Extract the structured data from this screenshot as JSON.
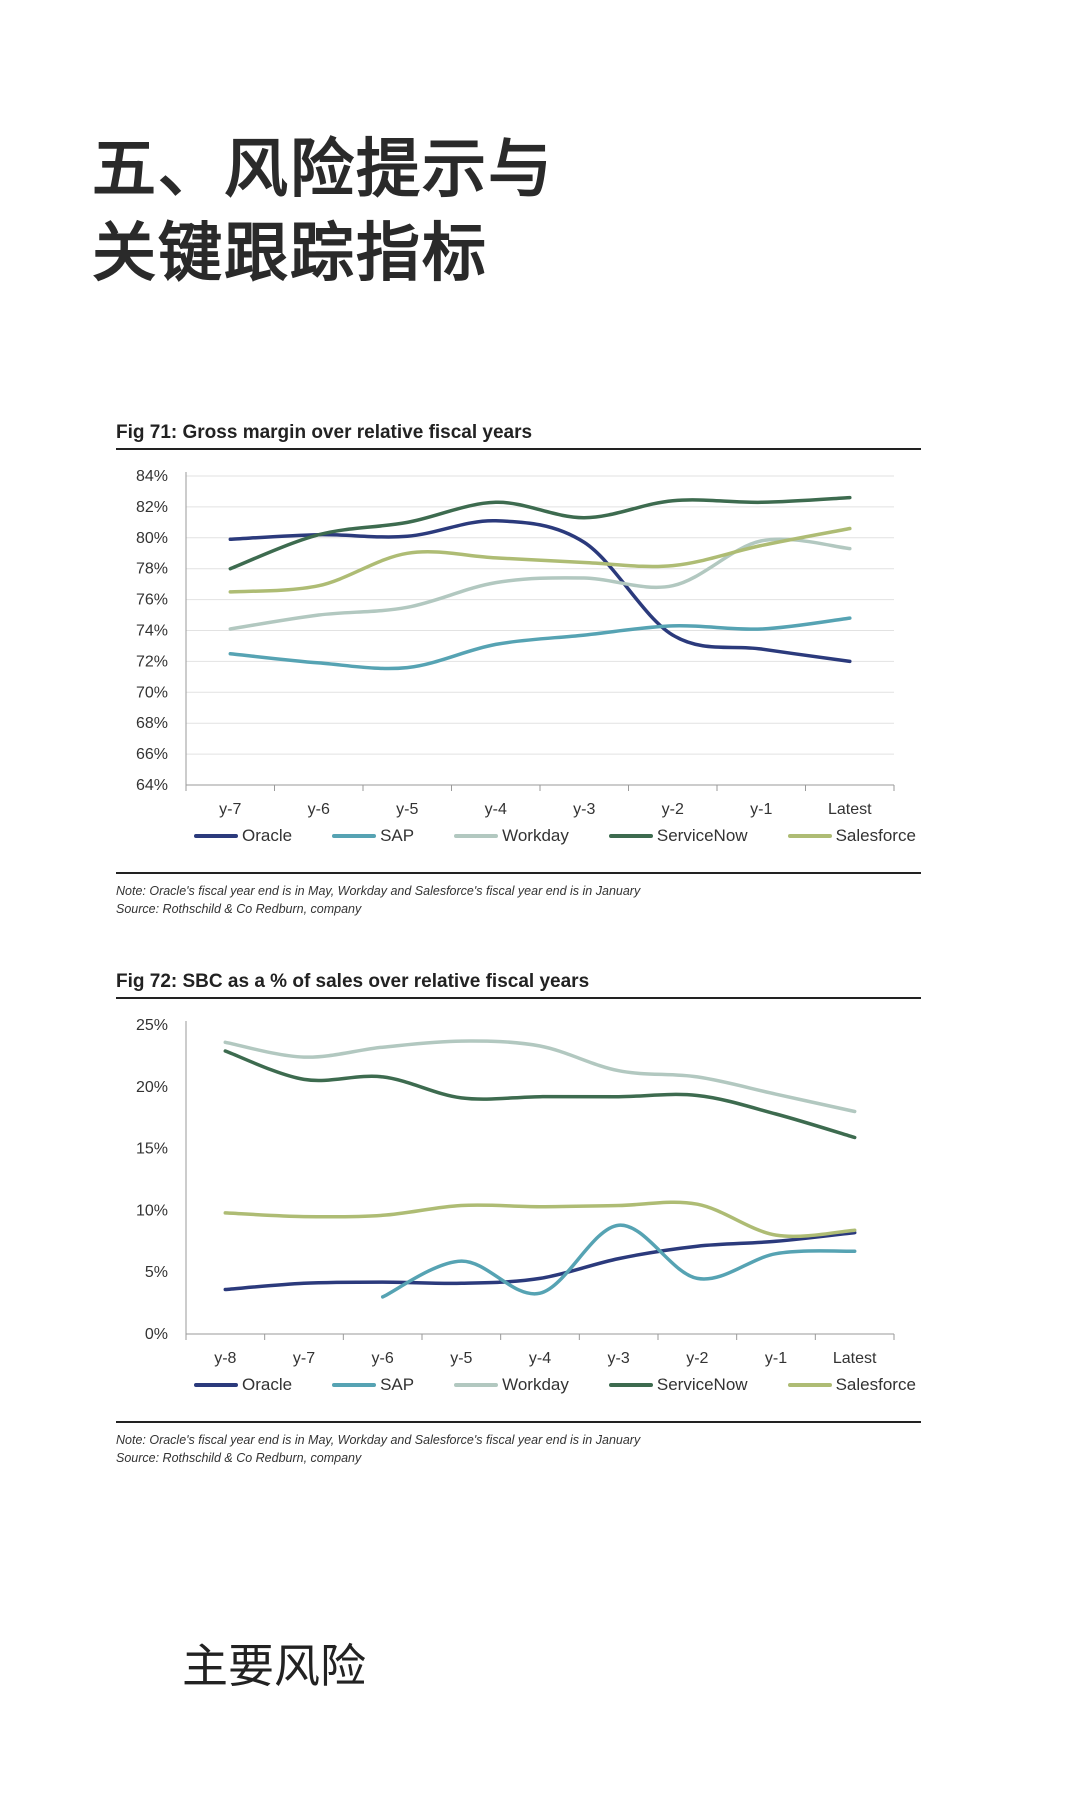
{
  "page": {
    "title_line1": "五、风险提示与",
    "title_line2": "关键跟踪指标",
    "section_heading": "主要风险"
  },
  "colors": {
    "Oracle": "#2b3a7c",
    "SAP": "#56a3b3",
    "Workday": "#b2c8c0",
    "ServiceNow": "#3d6b4f",
    "Salesforce": "#aebc74"
  },
  "chart_data": [
    {
      "type": "line",
      "title": "Fig 71: Gross margin over relative fiscal years",
      "xlabel": "",
      "ylabel": "",
      "categories": [
        "y-7",
        "y-6",
        "y-5",
        "y-4",
        "y-3",
        "y-2",
        "y-1",
        "Latest"
      ],
      "y_ticks": [
        64,
        66,
        68,
        70,
        72,
        74,
        76,
        78,
        80,
        82,
        84
      ],
      "y_tick_labels": [
        "64%",
        "66%",
        "68%",
        "70%",
        "72%",
        "74%",
        "76%",
        "78%",
        "80%",
        "82%",
        "84%"
      ],
      "ylim": [
        64,
        84
      ],
      "grid": true,
      "legend_position": "bottom",
      "series": [
        {
          "name": "Oracle",
          "values": [
            79.9,
            80.2,
            80.1,
            81.1,
            79.7,
            73.7,
            72.8,
            72.0
          ]
        },
        {
          "name": "SAP",
          "values": [
            72.5,
            71.9,
            71.6,
            73.1,
            73.7,
            74.3,
            74.1,
            74.8
          ]
        },
        {
          "name": "Workday",
          "values": [
            74.1,
            75.0,
            75.5,
            77.1,
            77.4,
            76.9,
            79.8,
            79.3
          ]
        },
        {
          "name": "ServiceNow",
          "values": [
            78.0,
            80.2,
            81.0,
            82.3,
            81.3,
            82.4,
            82.3,
            82.6
          ]
        },
        {
          "name": "Salesforce",
          "values": [
            76.5,
            76.9,
            79.0,
            78.7,
            78.4,
            78.2,
            79.5,
            80.6
          ]
        }
      ],
      "note_line1": "Note: Oracle's fiscal year end is in May, Workday and Salesforce's fiscal year end is in January",
      "note_line2": "Source: Rothschild & Co Redburn, company"
    },
    {
      "type": "line",
      "title": "Fig 72: SBC as a % of sales over relative fiscal years",
      "xlabel": "",
      "ylabel": "",
      "categories": [
        "y-8",
        "y-7",
        "y-6",
        "y-5",
        "y-4",
        "y-3",
        "y-2",
        "y-1",
        "Latest"
      ],
      "y_ticks": [
        0,
        5,
        10,
        15,
        20,
        25
      ],
      "y_tick_labels": [
        "0%",
        "5%",
        "10%",
        "15%",
        "20%",
        "25%"
      ],
      "ylim": [
        0,
        25
      ],
      "grid": false,
      "legend_position": "bottom",
      "series": [
        {
          "name": "Oracle",
          "values": [
            3.6,
            4.1,
            4.2,
            4.1,
            4.5,
            6.1,
            7.1,
            7.5,
            8.2
          ]
        },
        {
          "name": "SAP",
          "values": [
            null,
            null,
            3.0,
            5.9,
            3.3,
            8.8,
            4.5,
            6.5,
            6.7
          ]
        },
        {
          "name": "Workday",
          "values": [
            23.6,
            22.4,
            23.2,
            23.7,
            23.3,
            21.3,
            20.8,
            19.4,
            18.0
          ]
        },
        {
          "name": "ServiceNow",
          "values": [
            22.9,
            20.6,
            20.8,
            19.1,
            19.2,
            19.2,
            19.3,
            17.8,
            15.9
          ]
        },
        {
          "name": "Salesforce",
          "values": [
            9.8,
            9.5,
            9.6,
            10.4,
            10.3,
            10.4,
            10.5,
            8.0,
            8.4
          ]
        }
      ],
      "note_line1": "Note: Oracle's fiscal year end is in May, Workday and Salesforce's fiscal year end is in January",
      "note_line2": "Source: Rothschild & Co Redburn, company"
    }
  ]
}
